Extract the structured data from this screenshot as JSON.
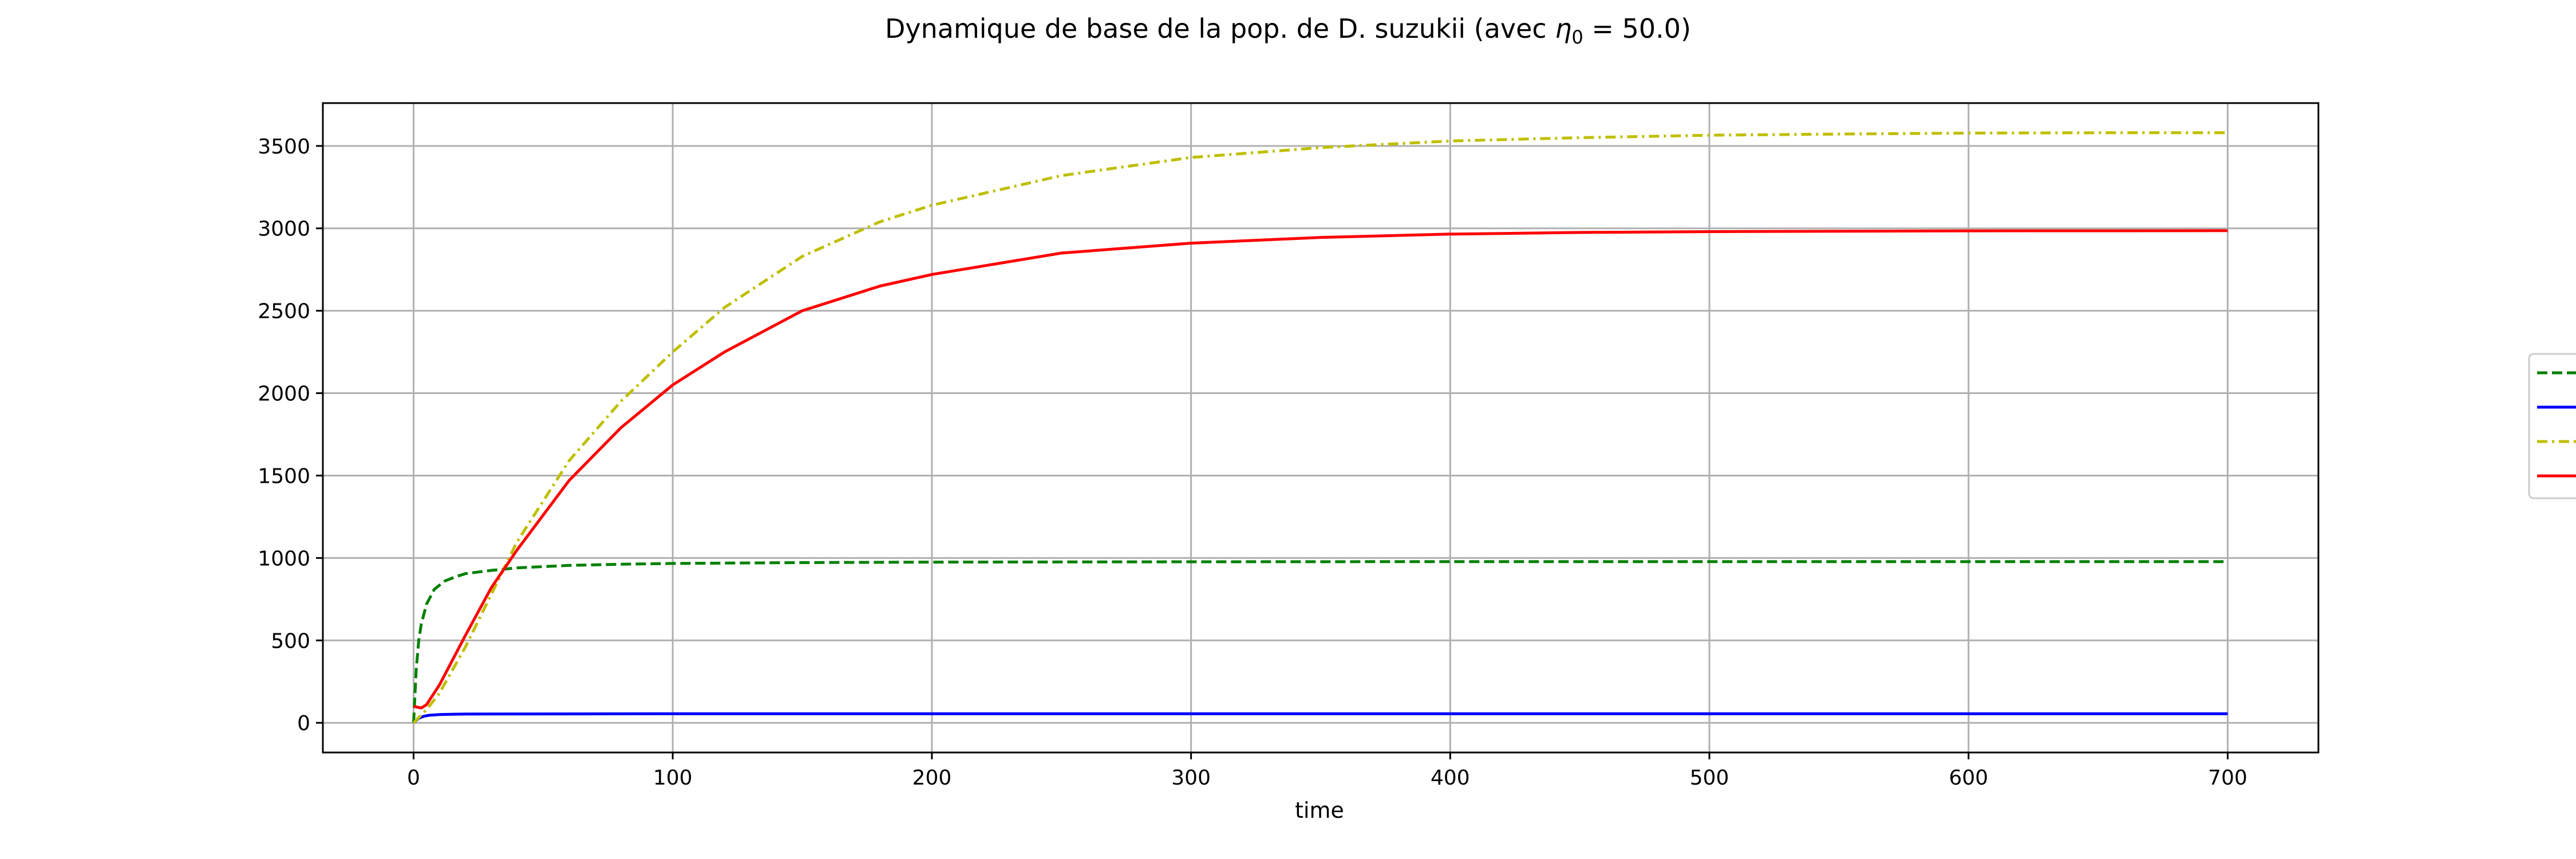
{
  "chart_data": {
    "type": "line",
    "title": "Dynamique de base de la pop. de D. suzukii (avec η₀ = 50.0)",
    "title_parts": {
      "before": "Dynamique de base de la pop. de D. suzukii (avec ",
      "symbol": "η",
      "subscript": "0",
      "after": " = 50.0)"
    },
    "xlabel": "time",
    "ylabel": "",
    "xlim": [
      -35,
      735
    ],
    "ylim": [
      -180,
      3760
    ],
    "xticks": [
      0,
      100,
      200,
      300,
      400,
      500,
      600,
      700
    ],
    "yticks": [
      0,
      500,
      1000,
      1500,
      2000,
      2500,
      3000,
      3500
    ],
    "grid": true,
    "legend_placement": "right, outside plot (entries cropped, labels not visible)",
    "series": [
      {
        "color": "#008000",
        "dash": "dashed",
        "x": [
          0,
          1,
          2,
          3,
          5,
          8,
          12,
          16,
          20,
          30,
          40,
          60,
          80,
          100,
          150,
          200,
          300,
          400,
          500,
          600,
          700
        ],
        "y": [
          0,
          320,
          500,
          600,
          720,
          810,
          860,
          885,
          905,
          925,
          940,
          955,
          962,
          967,
          972,
          975,
          977,
          978,
          978,
          978,
          978
        ]
      },
      {
        "color": "#0000ff",
        "dash": "solid",
        "x": [
          0,
          2,
          4,
          6,
          10,
          15,
          20,
          40,
          100,
          200,
          300,
          400,
          500,
          600,
          700
        ],
        "y": [
          0,
          28,
          40,
          46,
          50,
          52,
          53,
          54,
          55,
          55,
          55,
          55,
          55,
          55,
          55
        ]
      },
      {
        "color": "#bfbf00",
        "dash": "dashdot",
        "x": [
          0,
          5,
          10,
          20,
          30,
          40,
          60,
          80,
          100,
          120,
          150,
          180,
          200,
          250,
          300,
          350,
          400,
          450,
          500,
          550,
          600,
          650,
          700
        ],
        "y": [
          0,
          80,
          180,
          460,
          780,
          1100,
          1590,
          1950,
          2250,
          2520,
          2830,
          3040,
          3140,
          3320,
          3430,
          3490,
          3530,
          3550,
          3565,
          3572,
          3578,
          3580,
          3580
        ]
      },
      {
        "color": "#ff0000",
        "dash": "solid",
        "x": [
          0,
          3,
          5,
          10,
          20,
          30,
          40,
          60,
          80,
          100,
          120,
          150,
          180,
          200,
          250,
          300,
          350,
          400,
          450,
          500,
          600,
          700
        ],
        "y": [
          100,
          90,
          110,
          230,
          530,
          820,
          1050,
          1470,
          1790,
          2050,
          2250,
          2500,
          2650,
          2720,
          2850,
          2910,
          2945,
          2965,
          2975,
          2980,
          2985,
          2986
        ]
      }
    ]
  }
}
